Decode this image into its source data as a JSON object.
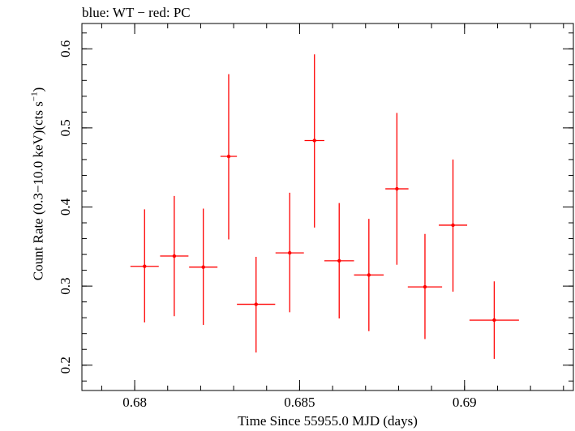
{
  "chart_data": {
    "type": "scatter",
    "title": "blue: WT − red: PC",
    "xlabel": "Time Since 55955.0 MJD (days)",
    "ylabel_main": "Count Rate (0.3−10.0 keV)(cts s",
    "ylabel_sup": "−1",
    "ylabel_end": ")",
    "xlim": [
      0.6784,
      0.6933
    ],
    "ylim": [
      0.168,
      0.632
    ],
    "x_ticks": [
      {
        "value": 0.68,
        "label": "0.68"
      },
      {
        "value": 0.685,
        "label": "0.685"
      },
      {
        "value": 0.69,
        "label": "0.69"
      }
    ],
    "y_ticks": [
      {
        "value": 0.2,
        "label": "0.2"
      },
      {
        "value": 0.3,
        "label": "0.3"
      },
      {
        "value": 0.4,
        "label": "0.4"
      },
      {
        "value": 0.5,
        "label": "0.5"
      },
      {
        "value": 0.6,
        "label": "0.6"
      }
    ],
    "x_minor_step": 0.001,
    "y_minor_step": 0.02,
    "grid": false,
    "series": [
      {
        "color": "#ff0000",
        "points": [
          {
            "x": 0.6803,
            "xerr": 0.00043,
            "y": 0.325,
            "ylo": 0.254,
            "yhi": 0.397
          },
          {
            "x": 0.6812,
            "xerr": 0.00043,
            "y": 0.338,
            "ylo": 0.262,
            "yhi": 0.414
          },
          {
            "x": 0.68208,
            "xerr": 0.00043,
            "y": 0.324,
            "ylo": 0.251,
            "yhi": 0.398
          },
          {
            "x": 0.68285,
            "xerr": 0.00025,
            "y": 0.464,
            "ylo": 0.359,
            "yhi": 0.568
          },
          {
            "x": 0.68368,
            "xerr": 0.00058,
            "y": 0.277,
            "ylo": 0.216,
            "yhi": 0.337
          },
          {
            "x": 0.6847,
            "xerr": 0.00043,
            "y": 0.342,
            "ylo": 0.267,
            "yhi": 0.418
          },
          {
            "x": 0.68545,
            "xerr": 0.0003,
            "y": 0.484,
            "ylo": 0.374,
            "yhi": 0.593
          },
          {
            "x": 0.6862,
            "xerr": 0.00045,
            "y": 0.332,
            "ylo": 0.259,
            "yhi": 0.405
          },
          {
            "x": 0.6871,
            "xerr": 0.00045,
            "y": 0.314,
            "ylo": 0.243,
            "yhi": 0.385
          },
          {
            "x": 0.68795,
            "xerr": 0.00035,
            "y": 0.423,
            "ylo": 0.327,
            "yhi": 0.519
          },
          {
            "x": 0.6888,
            "xerr": 0.00052,
            "y": 0.299,
            "ylo": 0.233,
            "yhi": 0.366
          },
          {
            "x": 0.68965,
            "xerr": 0.00043,
            "y": 0.377,
            "ylo": 0.293,
            "yhi": 0.46
          },
          {
            "x": 0.6909,
            "xerr": 0.00075,
            "y": 0.257,
            "ylo": 0.208,
            "yhi": 0.306
          }
        ]
      }
    ]
  }
}
